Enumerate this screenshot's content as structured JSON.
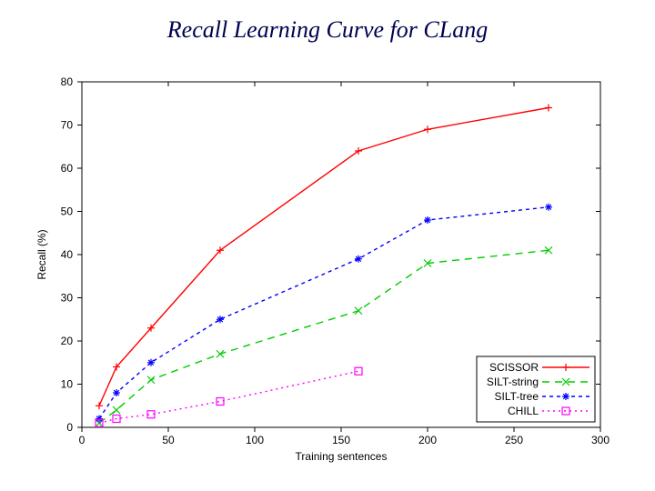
{
  "title": "Recall Learning Curve for CLang",
  "chart": {
    "type": "line",
    "xlabel": "Training sentences",
    "ylabel": "Recall (%)",
    "xlim": [
      0,
      300
    ],
    "ylim": [
      0,
      80
    ],
    "xtick_step": 50,
    "ytick_step": 10,
    "background_color": "#ffffff",
    "border_color": "#000000",
    "tick_font_size": 12,
    "label_font_size": 12,
    "series": [
      {
        "name": "SCISSOR",
        "color": "#ff0000",
        "marker": "plus",
        "dash": "solid",
        "x": [
          10,
          20,
          40,
          80,
          160,
          200,
          270
        ],
        "y": [
          5,
          14,
          23,
          41,
          64,
          69,
          74
        ]
      },
      {
        "name": "SILT-string",
        "color": "#00cc00",
        "marker": "x",
        "dash": "dash",
        "x": [
          10,
          20,
          40,
          80,
          160,
          200,
          270
        ],
        "y": [
          1,
          4,
          11,
          17,
          27,
          38,
          41
        ]
      },
      {
        "name": "SILT-tree",
        "color": "#0000ff",
        "marker": "star",
        "dash": "shortdash",
        "x": [
          10,
          20,
          40,
          80,
          160,
          200,
          270
        ],
        "y": [
          2,
          8,
          15,
          25,
          39,
          48,
          51
        ]
      },
      {
        "name": "CHILL",
        "color": "#ff00ff",
        "marker": "square",
        "dash": "dot",
        "x": [
          10,
          20,
          40,
          80,
          160
        ],
        "y": [
          1,
          2,
          3,
          6,
          13
        ]
      }
    ],
    "legend": {
      "position": "bottom-right",
      "box_color": "#000000"
    }
  }
}
